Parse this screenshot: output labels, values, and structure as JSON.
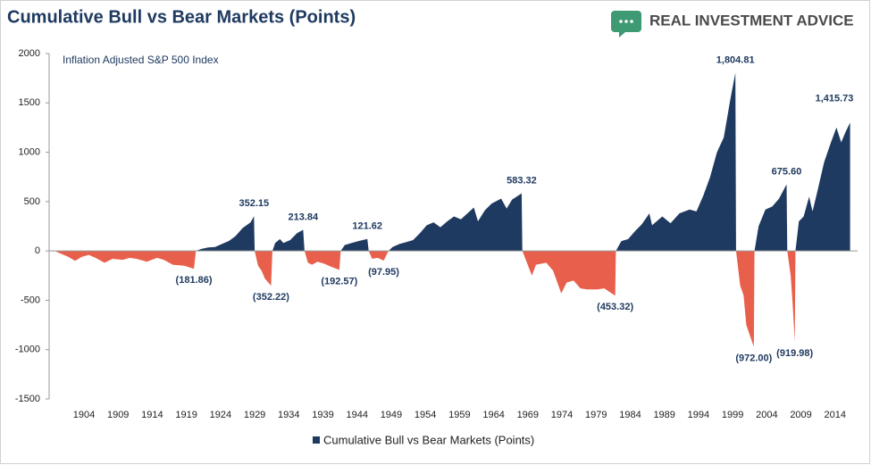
{
  "brand": "REAL INVESTMENT ADVICE",
  "chart_data": {
    "type": "area",
    "title": "Cumulative Bull vs Bear Markets (Points)",
    "subtitle": "Inflation Adjusted S&P 500 Index",
    "series": [
      {
        "name": "Cumulative Bull vs Bear Markets (Points)",
        "color": "#1f3a60",
        "negative_color": "#e8604c",
        "x": [
          1899.7,
          1900.7,
          1901.7,
          1902.7,
          1903.7,
          1904.7,
          1905.7,
          1907,
          1908.2,
          1909.7,
          1910.7,
          1911.7,
          1913.2,
          1914.7,
          1915.7,
          1917,
          1918.7,
          1920.1,
          1920.4,
          1921.2,
          1922.2,
          1923.2,
          1924.2,
          1925.2,
          1926.2,
          1927.2,
          1928.4,
          1928.9,
          1929,
          1929.5,
          1930,
          1930.5,
          1931.4,
          1931.6,
          1932,
          1932.7,
          1933.2,
          1934.2,
          1935.2,
          1936.1,
          1936.3,
          1936.8,
          1937.4,
          1938.2,
          1939.2,
          1940.2,
          1941.4,
          1941.6,
          1942.2,
          1943.2,
          1944.2,
          1945.5,
          1945.7,
          1946.2,
          1947,
          1947.9,
          1948.6,
          1949.2,
          1950.2,
          1951.2,
          1952.2,
          1953.2,
          1954.2,
          1955.2,
          1956.2,
          1957.2,
          1958.2,
          1959.2,
          1961.1,
          1961.7,
          1962.7,
          1963.7,
          1965.1,
          1965.9,
          1966.7,
          1968.1,
          1968.2,
          1969.6,
          1970.2,
          1971.7,
          1972.7,
          1973.9,
          1974.7,
          1975.7,
          1976.7,
          1977.7,
          1979.2,
          1980.2,
          1981.8,
          1981.9,
          1982.7,
          1983.7,
          1984.7,
          1985.7,
          1986.8,
          1987.2,
          1988.7,
          1989.9,
          1991.2,
          1992.7,
          1993.7,
          1994.7,
          1995.7,
          1996.7,
          1997.7,
          1998.7,
          1999.4,
          1999.5,
          2000.1,
          2000.6,
          2001,
          2002.1,
          2002.2,
          2002.8,
          2003.8,
          2004.8,
          2005.8,
          2006.9,
          2007,
          2007.5,
          2007.8,
          2008.1,
          2008.2,
          2008.7,
          2009.4,
          2010.2,
          2010.7,
          2011.4,
          2012.4,
          2013.4,
          2014.2,
          2014.9,
          2015.5,
          2016.2
        ],
        "values": [
          0,
          -30,
          -60,
          -100,
          -60,
          -40,
          -70,
          -120,
          -80,
          -90,
          -70,
          -80,
          -110,
          -70,
          -90,
          -140,
          -150,
          -181.86,
          0,
          20,
          35,
          40,
          70,
          100,
          150,
          230,
          290,
          352.15,
          0,
          -150,
          -200,
          -280,
          -352.22,
          0,
          80,
          120,
          80,
          110,
          180,
          213.84,
          0,
          -120,
          -140,
          -110,
          -130,
          -160,
          -192.57,
          0,
          60,
          80,
          100,
          121.62,
          0,
          -80,
          -70,
          -97.95,
          0,
          40,
          70,
          90,
          110,
          180,
          260,
          290,
          240,
          300,
          350,
          320,
          440,
          300,
          410,
          480,
          530,
          430,
          520,
          583.32,
          0,
          -250,
          -140,
          -120,
          -200,
          -430,
          -320,
          -300,
          -380,
          -390,
          -390,
          -380,
          -453.32,
          0,
          100,
          120,
          200,
          270,
          380,
          260,
          350,
          280,
          380,
          420,
          400,
          560,
          750,
          1000,
          1150,
          1550,
          1804.81,
          0,
          -350,
          -450,
          -750,
          -972,
          0,
          250,
          420,
          450,
          530,
          675.6,
          0,
          -250,
          -550,
          -919.98,
          0,
          300,
          350,
          550,
          400,
          600,
          900,
          1100,
          1250,
          1100,
          1200,
          1300
        ]
      }
    ],
    "annotations": [
      {
        "x": 1928.9,
        "value": 352.15,
        "label": "352.15"
      },
      {
        "x": 1936.1,
        "value": 213.84,
        "label": "213.84"
      },
      {
        "x": 1945.5,
        "value": 121.62,
        "label": "121.62"
      },
      {
        "x": 1968.1,
        "value": 583.32,
        "label": "583.32"
      },
      {
        "x": 1999.4,
        "value": 1804.81,
        "label": "1,804.81"
      },
      {
        "x": 2006.9,
        "value": 675.6,
        "label": "675.60"
      },
      {
        "x": 2013.9,
        "value": 1415.73,
        "label": "1,415.73"
      },
      {
        "x": 1920.1,
        "value": -181.86,
        "label": "(181.86)"
      },
      {
        "x": 1931.4,
        "value": -352.22,
        "label": "(352.22)"
      },
      {
        "x": 1941.4,
        "value": -192.57,
        "label": "(192.57)"
      },
      {
        "x": 1947.9,
        "value": -97.95,
        "label": "(97.95)"
      },
      {
        "x": 1981.8,
        "value": -453.32,
        "label": "(453.32)"
      },
      {
        "x": 2002.1,
        "value": -972,
        "label": "(972.00)"
      },
      {
        "x": 2008.1,
        "value": -919.98,
        "label": "(919.98)"
      }
    ],
    "xlim": [
      1898.9,
      2017.3
    ],
    "xticks": [
      1904,
      1909,
      1914,
      1919,
      1924,
      1929,
      1934,
      1939,
      1944,
      1949,
      1954,
      1959,
      1964,
      1969,
      1974,
      1979,
      1984,
      1989,
      1994,
      1999,
      2004,
      2009,
      2014
    ],
    "ylim": [
      -1500,
      2000
    ],
    "yticks": [
      2000,
      1500,
      1000,
      500,
      0,
      -500,
      -1000,
      -1500
    ],
    "grid": false,
    "legend": "bottom"
  }
}
